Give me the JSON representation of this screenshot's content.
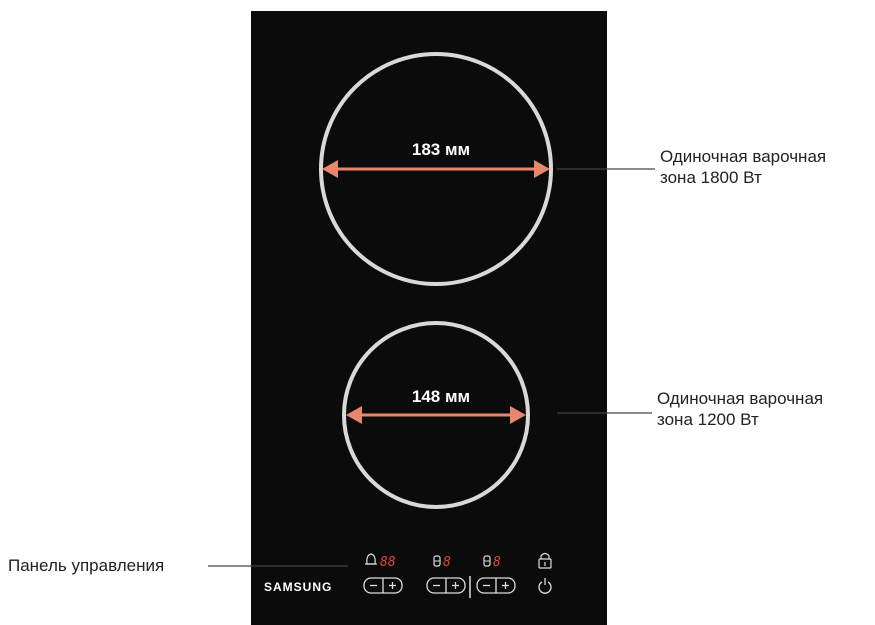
{
  "zones": [
    {
      "diameter_label": "183 мм",
      "callout_line1": "Одиночная варочная",
      "callout_line2": "зона 1800 Вт"
    },
    {
      "diameter_label": "148 мм",
      "callout_line1": "Одиночная варочная",
      "callout_line2": "зона 1200 Вт"
    }
  ],
  "control_panel": {
    "callout": "Панель управления",
    "brand": "SAMSUNG",
    "timer_display": "88",
    "zone1_display": "8",
    "zone2_display": "8",
    "icons": [
      "bell-icon",
      "zone-indicator-icon",
      "lock-icon",
      "power-icon"
    ]
  },
  "colors": {
    "surface": "#0b0b0b",
    "ring": "#d9d9d9",
    "arrow": "#e8866e",
    "display_digits": "#e0482a"
  }
}
